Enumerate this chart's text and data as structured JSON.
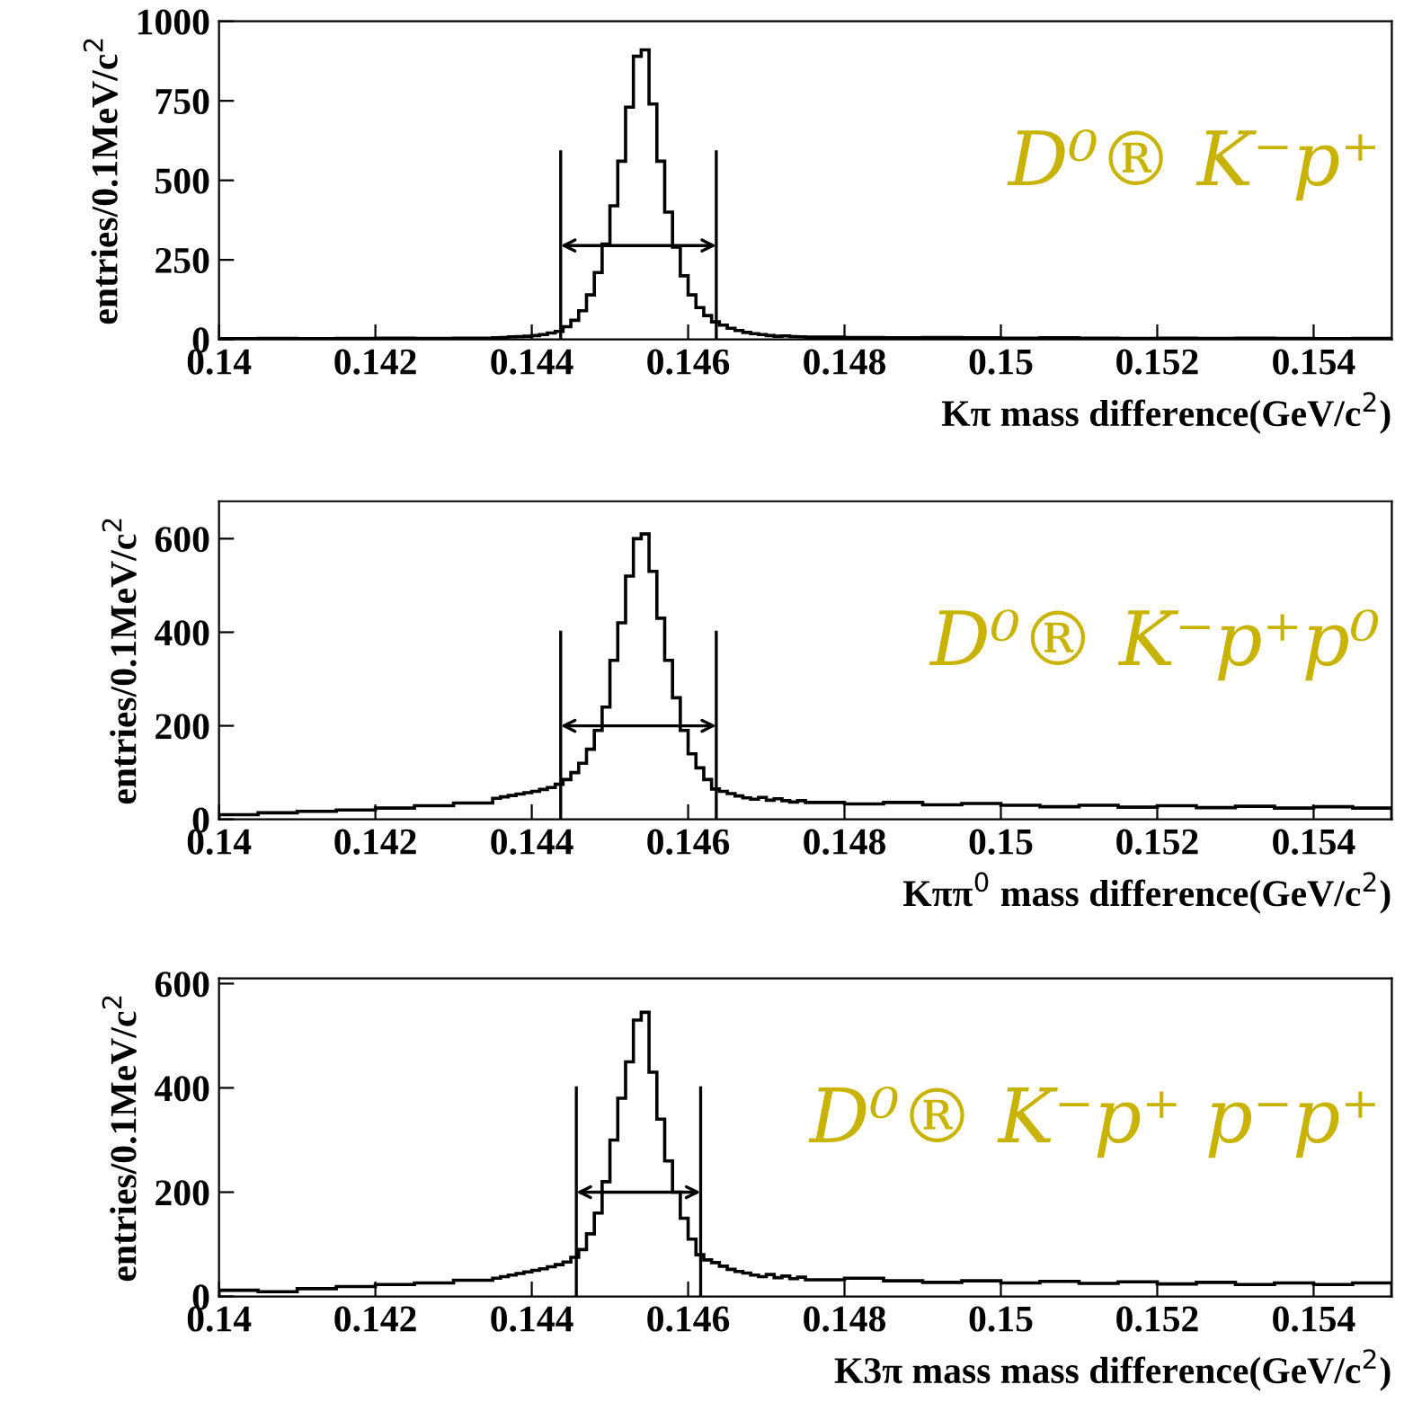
{
  "chart_data": [
    {
      "type": "histogram",
      "xlabel": "Kπ mass difference(GeV/c$^{2}$)",
      "ylabel": "entries/0.1MeV/c$^{2}$",
      "color": "#000000",
      "xlim": [
        0.14,
        0.155
      ],
      "xticks": [
        0.14,
        0.142,
        0.144,
        0.146,
        0.148,
        0.15,
        0.152,
        0.154
      ],
      "ylim": [
        0,
        1000
      ],
      "yticks": [
        0,
        250,
        500,
        750,
        1000
      ],
      "grid": false,
      "bins": [
        0.14,
        0.1405,
        0.141,
        0.1415,
        0.142,
        0.1425,
        0.143,
        0.1435,
        0.1436,
        0.1437,
        0.1438,
        0.1439,
        0.144,
        0.1441,
        0.1442,
        0.1443,
        0.1444,
        0.1445,
        0.1446,
        0.1447,
        0.1448,
        0.1449,
        0.145,
        0.1451,
        0.1452,
        0.1453,
        0.1454,
        0.1455,
        0.1456,
        0.1457,
        0.1458,
        0.1459,
        0.146,
        0.1461,
        0.1462,
        0.1463,
        0.1464,
        0.1465,
        0.1466,
        0.1467,
        0.1468,
        0.1469,
        0.147,
        0.1471,
        0.1472,
        0.1473,
        0.1474,
        0.1475,
        0.148,
        0.1485,
        0.149,
        0.1495,
        0.15,
        0.1505,
        0.151,
        0.1515,
        0.152,
        0.1525,
        0.153,
        0.1535,
        0.154,
        0.1545,
        0.155
      ],
      "values": [
        2,
        3,
        2,
        3,
        4,
        3,
        4,
        5,
        6,
        8,
        9,
        10,
        12,
        15,
        20,
        25,
        40,
        60,
        90,
        140,
        210,
        300,
        420,
        560,
        730,
        890,
        910,
        740,
        560,
        400,
        290,
        200,
        140,
        100,
        75,
        55,
        45,
        35,
        28,
        22,
        18,
        15,
        12,
        10,
        11,
        9,
        8,
        7,
        6,
        5,
        6,
        5,
        4,
        5,
        4,
        3,
        4,
        3,
        4,
        3,
        2,
        3
      ],
      "series": [
        {
          "type": "line",
          "color": "#000000",
          "x": [
            0.14437,
            0.14437
          ],
          "values": [
            0,
            590
          ]
        },
        {
          "type": "line",
          "color": "#000000",
          "x": [
            0.14636,
            0.14636
          ],
          "values": [
            0,
            590
          ]
        }
      ],
      "annotations": [
        "D⁰® K⁻p⁺"
      ]
    },
    {
      "type": "histogram",
      "xlabel": "Kππ$^{0}$ mass difference(GeV/c$^{2}$)",
      "ylabel": "entries/0.1MeV/c$^{2}$",
      "color": "#000000",
      "xlim": [
        0.14,
        0.155
      ],
      "xticks": [
        0.14,
        0.142,
        0.144,
        0.146,
        0.148,
        0.15,
        0.152,
        0.154
      ],
      "ylim": [
        0,
        680
      ],
      "yticks": [
        0,
        200,
        400,
        600
      ],
      "grid": false,
      "bins": [
        0.14,
        0.1405,
        0.141,
        0.1415,
        0.142,
        0.1425,
        0.143,
        0.1435,
        0.1436,
        0.1437,
        0.1438,
        0.1439,
        0.144,
        0.1441,
        0.1442,
        0.1443,
        0.1444,
        0.1445,
        0.1446,
        0.1447,
        0.1448,
        0.1449,
        0.145,
        0.1451,
        0.1452,
        0.1453,
        0.1454,
        0.1455,
        0.1456,
        0.1457,
        0.1458,
        0.1459,
        0.146,
        0.1461,
        0.1462,
        0.1463,
        0.1464,
        0.1465,
        0.1466,
        0.1467,
        0.1468,
        0.1469,
        0.147,
        0.1471,
        0.1472,
        0.1473,
        0.1474,
        0.1475,
        0.148,
        0.1485,
        0.149,
        0.1495,
        0.15,
        0.1505,
        0.151,
        0.1515,
        0.152,
        0.1525,
        0.153,
        0.1535,
        0.154,
        0.1545,
        0.155
      ],
      "values": [
        10,
        14,
        17,
        20,
        24,
        29,
        35,
        45,
        48,
        51,
        54,
        57,
        60,
        64,
        68,
        75,
        85,
        100,
        120,
        150,
        190,
        240,
        340,
        420,
        520,
        600,
        610,
        530,
        430,
        340,
        260,
        190,
        140,
        110,
        85,
        65,
        60,
        55,
        50,
        46,
        43,
        47,
        41,
        44,
        40,
        37,
        40,
        36,
        33,
        36,
        31,
        34,
        30,
        27,
        30,
        26,
        29,
        25,
        28,
        24,
        27,
        24
      ],
      "series": [
        {
          "type": "line",
          "color": "#000000",
          "x": [
            0.14437,
            0.14437
          ],
          "values": [
            0,
            400
          ]
        },
        {
          "type": "line",
          "color": "#000000",
          "x": [
            0.14636,
            0.14636
          ],
          "values": [
            0,
            400
          ]
        }
      ],
      "annotations": [
        "D⁰® K⁻p⁺p⁰"
      ]
    },
    {
      "type": "histogram",
      "xlabel": "K3π mass mass difference(GeV/c$^{2}$)",
      "ylabel": "entries/0.1MeV/c$^{2}$",
      "color": "#000000",
      "xlim": [
        0.14,
        0.155
      ],
      "xticks": [
        0.14,
        0.142,
        0.144,
        0.146,
        0.148,
        0.15,
        0.152,
        0.154
      ],
      "ylim": [
        0,
        610
      ],
      "yticks": [
        0,
        200,
        400,
        600
      ],
      "grid": false,
      "bins": [
        0.14,
        0.1405,
        0.141,
        0.1415,
        0.142,
        0.1425,
        0.143,
        0.1435,
        0.1436,
        0.1437,
        0.1438,
        0.1439,
        0.144,
        0.1441,
        0.1442,
        0.1443,
        0.1444,
        0.1445,
        0.1446,
        0.1447,
        0.1448,
        0.1449,
        0.145,
        0.1451,
        0.1452,
        0.1453,
        0.1454,
        0.1455,
        0.1456,
        0.1457,
        0.1458,
        0.1459,
        0.146,
        0.1461,
        0.1462,
        0.1463,
        0.1464,
        0.1465,
        0.1466,
        0.1467,
        0.1468,
        0.1469,
        0.147,
        0.1471,
        0.1472,
        0.1473,
        0.1474,
        0.1475,
        0.148,
        0.1485,
        0.149,
        0.1495,
        0.15,
        0.1505,
        0.151,
        0.1515,
        0.152,
        0.1525,
        0.153,
        0.1535,
        0.154,
        0.1545,
        0.155
      ],
      "values": [
        12,
        9,
        15,
        19,
        23,
        26,
        31,
        35,
        38,
        41,
        44,
        47,
        50,
        53,
        57,
        61,
        66,
        75,
        90,
        120,
        160,
        220,
        300,
        380,
        450,
        530,
        545,
        430,
        340,
        260,
        200,
        150,
        110,
        80,
        70,
        65,
        58,
        52,
        48,
        45,
        41,
        38,
        42,
        36,
        39,
        34,
        37,
        32,
        35,
        30,
        27,
        30,
        26,
        29,
        25,
        28,
        24,
        27,
        23,
        26,
        23,
        26
      ],
      "series": [
        {
          "type": "line",
          "color": "#000000",
          "x": [
            0.14457,
            0.14457
          ],
          "values": [
            0,
            400
          ]
        },
        {
          "type": "line",
          "color": "#000000",
          "x": [
            0.14616,
            0.14616
          ],
          "values": [
            0,
            400
          ]
        }
      ],
      "annotations": [
        "D⁰® K⁻p⁺ p⁻p⁺"
      ]
    }
  ]
}
